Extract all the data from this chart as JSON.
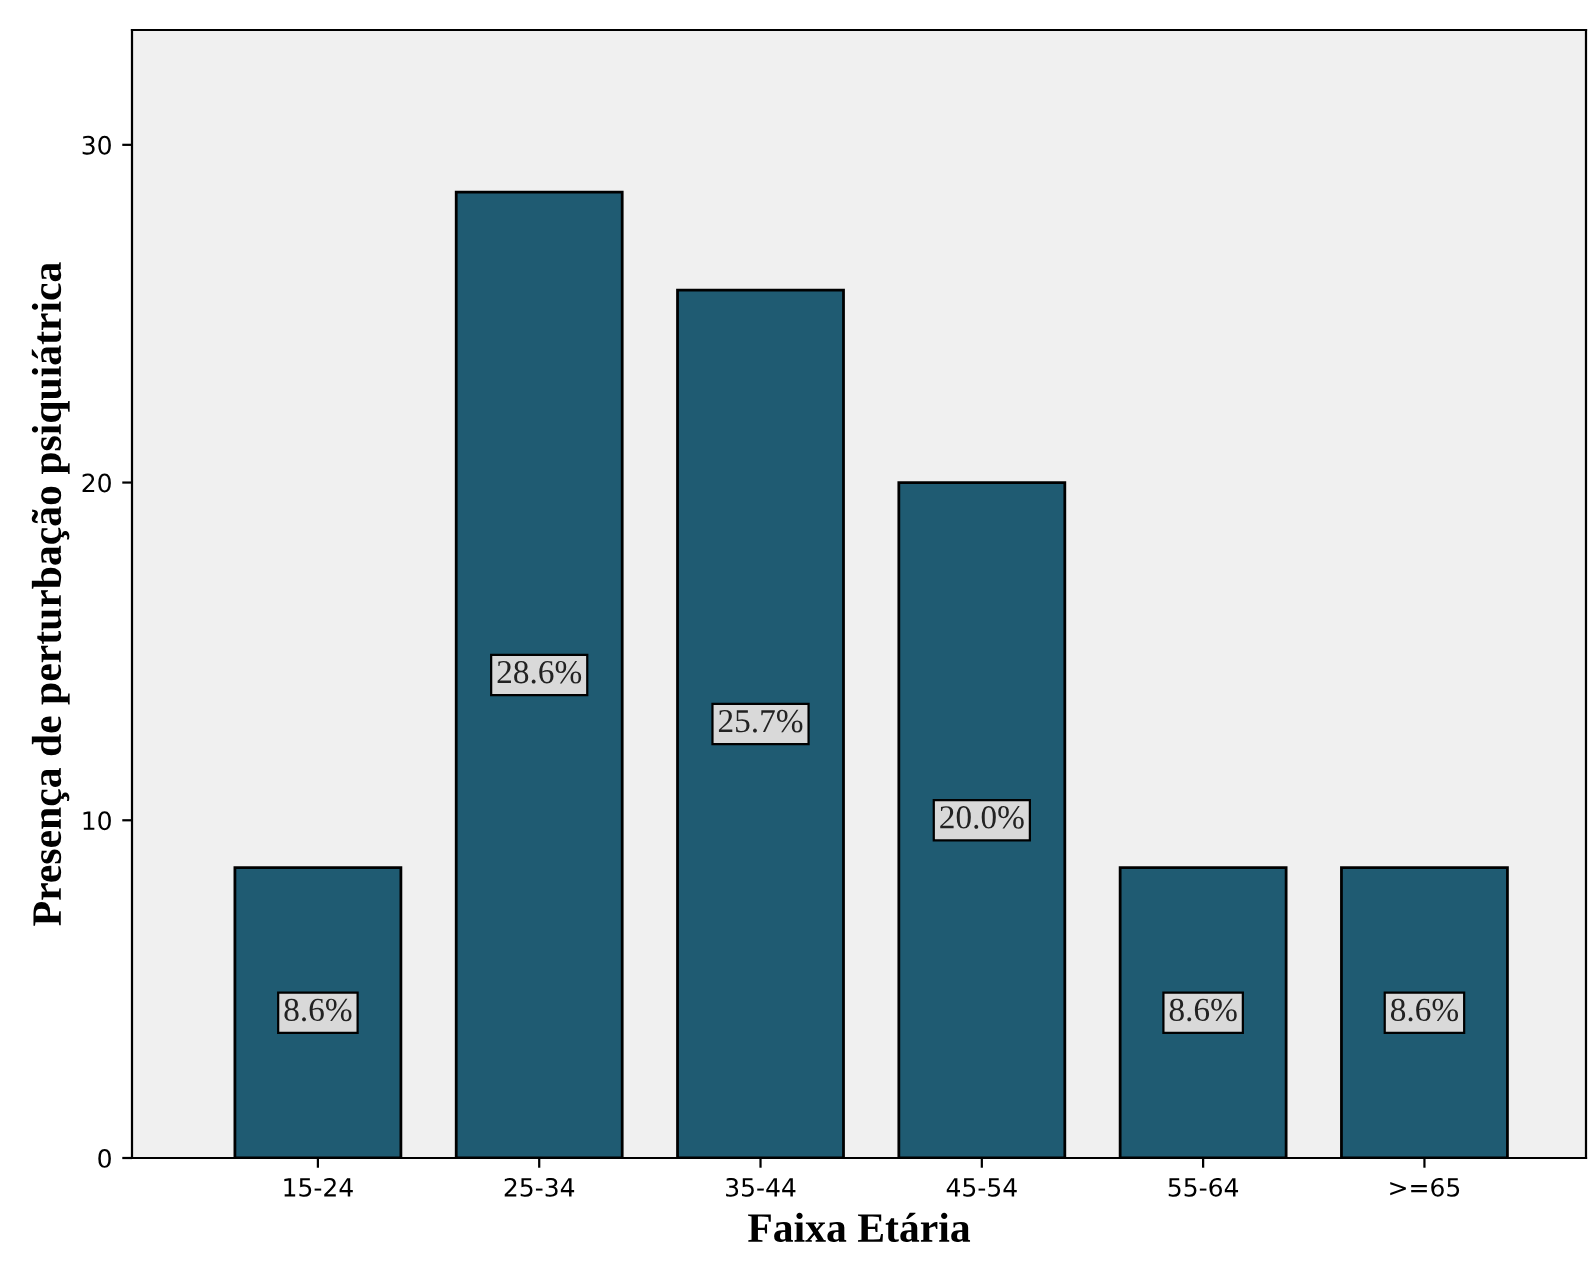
{
  "chart_data": {
    "type": "bar",
    "xlabel": "Faixa Etária",
    "ylabel": "Presença de perturbação psiquiátrica",
    "categories": [
      "15-24",
      "25-34",
      "35-44",
      "45-54",
      "55-64",
      ">=65"
    ],
    "values": [
      8.6,
      28.6,
      25.7,
      20.0,
      8.6,
      8.6
    ],
    "value_labels": [
      "8.6%",
      "28.6%",
      "25.7%",
      "20.0%",
      "8.6%",
      "8.6%"
    ],
    "color": "#1f5b72",
    "ylim": [
      0,
      33.4
    ],
    "yticks": [
      0,
      10,
      20,
      30
    ],
    "grid": false,
    "legend": false
  }
}
